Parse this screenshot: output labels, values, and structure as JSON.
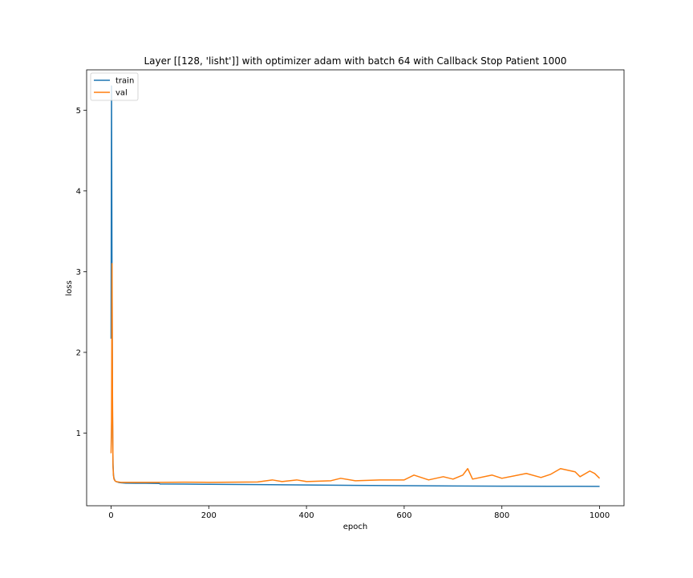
{
  "chart_data": {
    "type": "line",
    "title": "Layer [[128, 'lisht']] with optimizer adam with batch 64 with Callback Stop Patient 1000",
    "xlabel": "epoch",
    "ylabel": "loss",
    "xlim": [
      -50,
      1050
    ],
    "ylim": [
      0.1,
      5.5
    ],
    "xticks": [
      0,
      200,
      400,
      600,
      800,
      1000
    ],
    "yticks": [
      1,
      2,
      3,
      4,
      5
    ],
    "legend_position": "upper left",
    "grid": false,
    "series": [
      {
        "name": "train",
        "color": "#1f77b4",
        "x": [
          0,
          1,
          2,
          3,
          4,
          5,
          6,
          8,
          10,
          15,
          20,
          30,
          50,
          70,
          99,
          100,
          150,
          200,
          300,
          400,
          500,
          600,
          700,
          800,
          900,
          950,
          1000
        ],
        "y": [
          2.17,
          5.3,
          2.9,
          1.2,
          0.62,
          0.48,
          0.44,
          0.41,
          0.4,
          0.39,
          0.385,
          0.38,
          0.378,
          0.378,
          0.376,
          0.37,
          0.368,
          0.366,
          0.362,
          0.357,
          0.352,
          0.349,
          0.345,
          0.343,
          0.341,
          0.341,
          0.34
        ]
      },
      {
        "name": "val",
        "color": "#ff7f0e",
        "x": [
          0,
          1,
          2,
          3,
          4,
          5,
          6,
          8,
          10,
          15,
          20,
          30,
          50,
          100,
          150,
          200,
          250,
          300,
          330,
          350,
          380,
          400,
          450,
          470,
          500,
          550,
          600,
          620,
          650,
          680,
          700,
          720,
          730,
          740,
          780,
          800,
          850,
          880,
          900,
          920,
          950,
          960,
          980,
          990,
          1000
        ],
        "y": [
          0.75,
          1.15,
          3.1,
          1.45,
          0.58,
          0.47,
          0.43,
          0.41,
          0.4,
          0.395,
          0.39,
          0.39,
          0.39,
          0.39,
          0.392,
          0.39,
          0.392,
          0.395,
          0.42,
          0.4,
          0.42,
          0.4,
          0.41,
          0.44,
          0.41,
          0.42,
          0.42,
          0.48,
          0.42,
          0.46,
          0.43,
          0.48,
          0.56,
          0.43,
          0.48,
          0.44,
          0.5,
          0.45,
          0.49,
          0.56,
          0.52,
          0.46,
          0.53,
          0.5,
          0.44
        ]
      }
    ]
  }
}
